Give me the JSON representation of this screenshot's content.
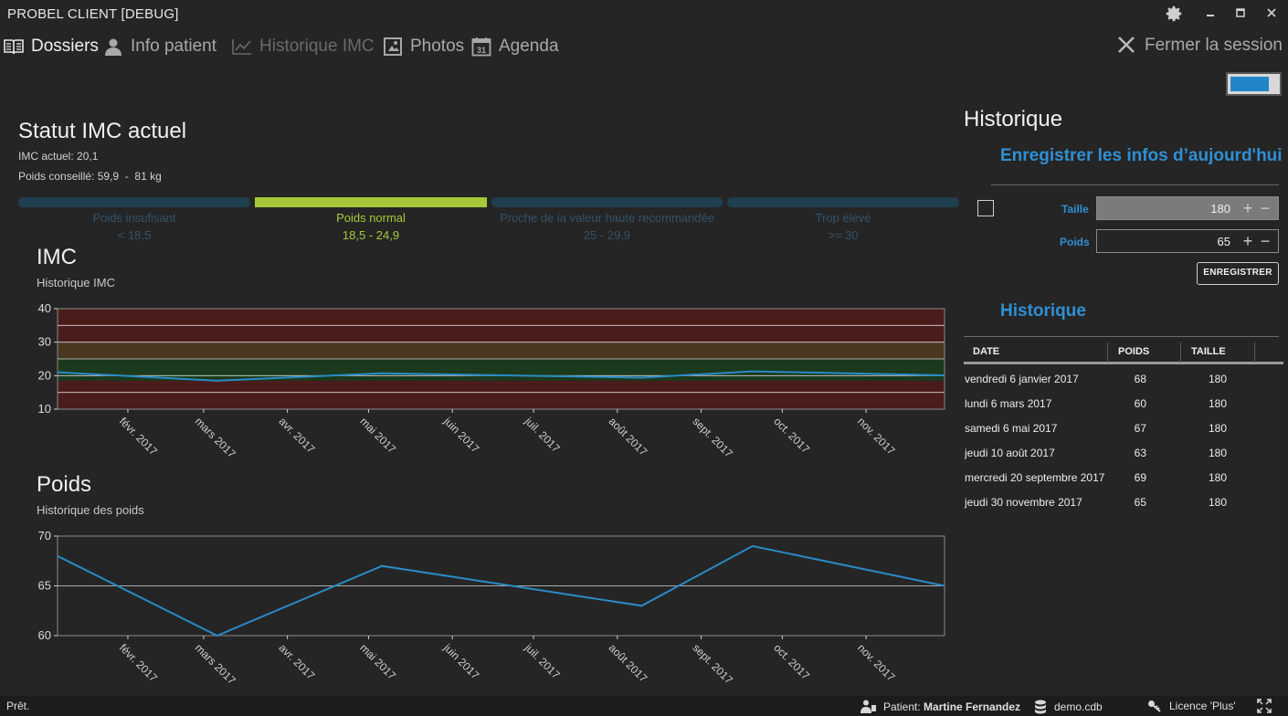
{
  "window": {
    "title": "PROBEL CLIENT [DEBUG]"
  },
  "nav": {
    "items": [
      {
        "label": "Dossiers",
        "icon": "book-icon",
        "state": "active"
      },
      {
        "label": "Info patient",
        "icon": "user-icon",
        "state": "normal"
      },
      {
        "label": "Historique IMC",
        "icon": "chart-line-icon",
        "state": "disabled"
      },
      {
        "label": "Photos",
        "icon": "photo-icon",
        "state": "normal"
      },
      {
        "label": "Agenda",
        "icon": "calendar-icon",
        "state": "normal"
      }
    ],
    "logout_label": "Fermer la session",
    "calendar_day": "31"
  },
  "status": {
    "title": "Statut IMC actuel",
    "current_bmi": "IMC actuel: 20,1",
    "recommended_weight": "Poids conseillé: 59,9  -  81 kg",
    "categories": [
      {
        "name": "Poids insufisant",
        "range": "< 18,5",
        "active": false
      },
      {
        "name": "Poids normal",
        "range": "18,5 - 24,9",
        "active": true
      },
      {
        "name": "Proche de la valeur haute recommandée",
        "range": "25 - 29,9",
        "active": false
      },
      {
        "name": "Trop élevé",
        "range": ">= 30",
        "active": false
      }
    ]
  },
  "colors": {
    "accent": "#2f8fd4",
    "active_category": "#a6c83a",
    "inactive_category": "#1f3e4e",
    "inactive_text": "#34526a",
    "line": "#2a8ac6"
  },
  "imc_chart": {
    "title": "IMC",
    "subtitle": "Historique IMC"
  },
  "poids_chart": {
    "title": "Poids",
    "subtitle": "Historique des poids"
  },
  "chart_data": [
    {
      "type": "line",
      "title": "IMC",
      "subtitle": "Historique IMC",
      "ylim": [
        10,
        40
      ],
      "yticks": [
        10,
        20,
        30,
        40
      ],
      "x_tick_labels": [
        "févr. 2017",
        "mars 2017",
        "avr. 2017",
        "mai 2017",
        "juin 2017",
        "juil. 2017",
        "août 2017",
        "sept. 2017",
        "oct. 2017",
        "nov. 2017"
      ],
      "xlim": [
        "2017-01-06",
        "2017-11-30"
      ],
      "bands": [
        {
          "from": 10,
          "to": 18.5,
          "color": "#4a1c1c"
        },
        {
          "from": 18.5,
          "to": 25,
          "color": "#1b3a1d"
        },
        {
          "from": 25,
          "to": 30,
          "color": "#4a3720"
        },
        {
          "from": 30,
          "to": 40,
          "color": "#4a1c1c"
        }
      ],
      "series": [
        {
          "x": [
            "2017-01-06",
            "2017-03-06",
            "2017-05-06",
            "2017-08-10",
            "2017-09-20",
            "2017-11-30"
          ],
          "values": [
            21.0,
            18.5,
            20.7,
            19.4,
            21.3,
            20.1
          ]
        }
      ],
      "grid": true
    },
    {
      "type": "line",
      "title": "Poids",
      "subtitle": "Historique des poids",
      "ylim": [
        60,
        70
      ],
      "yticks": [
        60,
        65,
        70
      ],
      "x_tick_labels": [
        "févr. 2017",
        "mars 2017",
        "avr. 2017",
        "mai 2017",
        "juin 2017",
        "juil. 2017",
        "août 2017",
        "sept. 2017",
        "oct. 2017",
        "nov. 2017"
      ],
      "xlim": [
        "2017-01-06",
        "2017-11-30"
      ],
      "series": [
        {
          "x": [
            "2017-01-06",
            "2017-03-06",
            "2017-05-06",
            "2017-08-10",
            "2017-09-20",
            "2017-11-30"
          ],
          "values": [
            68,
            60,
            67,
            63,
            69,
            65
          ]
        }
      ],
      "grid": true
    }
  ],
  "right_panel": {
    "title": "Historique",
    "save_heading": "Enregistrer les infos d’aujourd'hui",
    "taille_label": "Taille",
    "taille_value": "180",
    "poids_label": "Poids",
    "poids_value": "65",
    "save_button": "ENREGISTRER",
    "history_heading": "Historique",
    "plus": "+",
    "minus": "−",
    "columns": [
      "DATE",
      "POIDS",
      "TAILLE"
    ],
    "rows": [
      {
        "date": "vendredi 6 janvier 2017",
        "poids": "68",
        "taille": "180"
      },
      {
        "date": "lundi 6 mars 2017",
        "poids": "60",
        "taille": "180"
      },
      {
        "date": "samedi 6 mai 2017",
        "poids": "67",
        "taille": "180"
      },
      {
        "date": "jeudi 10 août 2017",
        "poids": "63",
        "taille": "180"
      },
      {
        "date": "mercredi 20 septembre 2017",
        "poids": "69",
        "taille": "180"
      },
      {
        "date": "jeudi 30 novembre 2017",
        "poids": "65",
        "taille": "180"
      }
    ]
  },
  "statusbar": {
    "ready": "Prêt.",
    "patient_prefix": "Patient: ",
    "patient_name": "Martine Fernandez",
    "database": "demo.cdb",
    "license": "Licence 'Plus'"
  }
}
